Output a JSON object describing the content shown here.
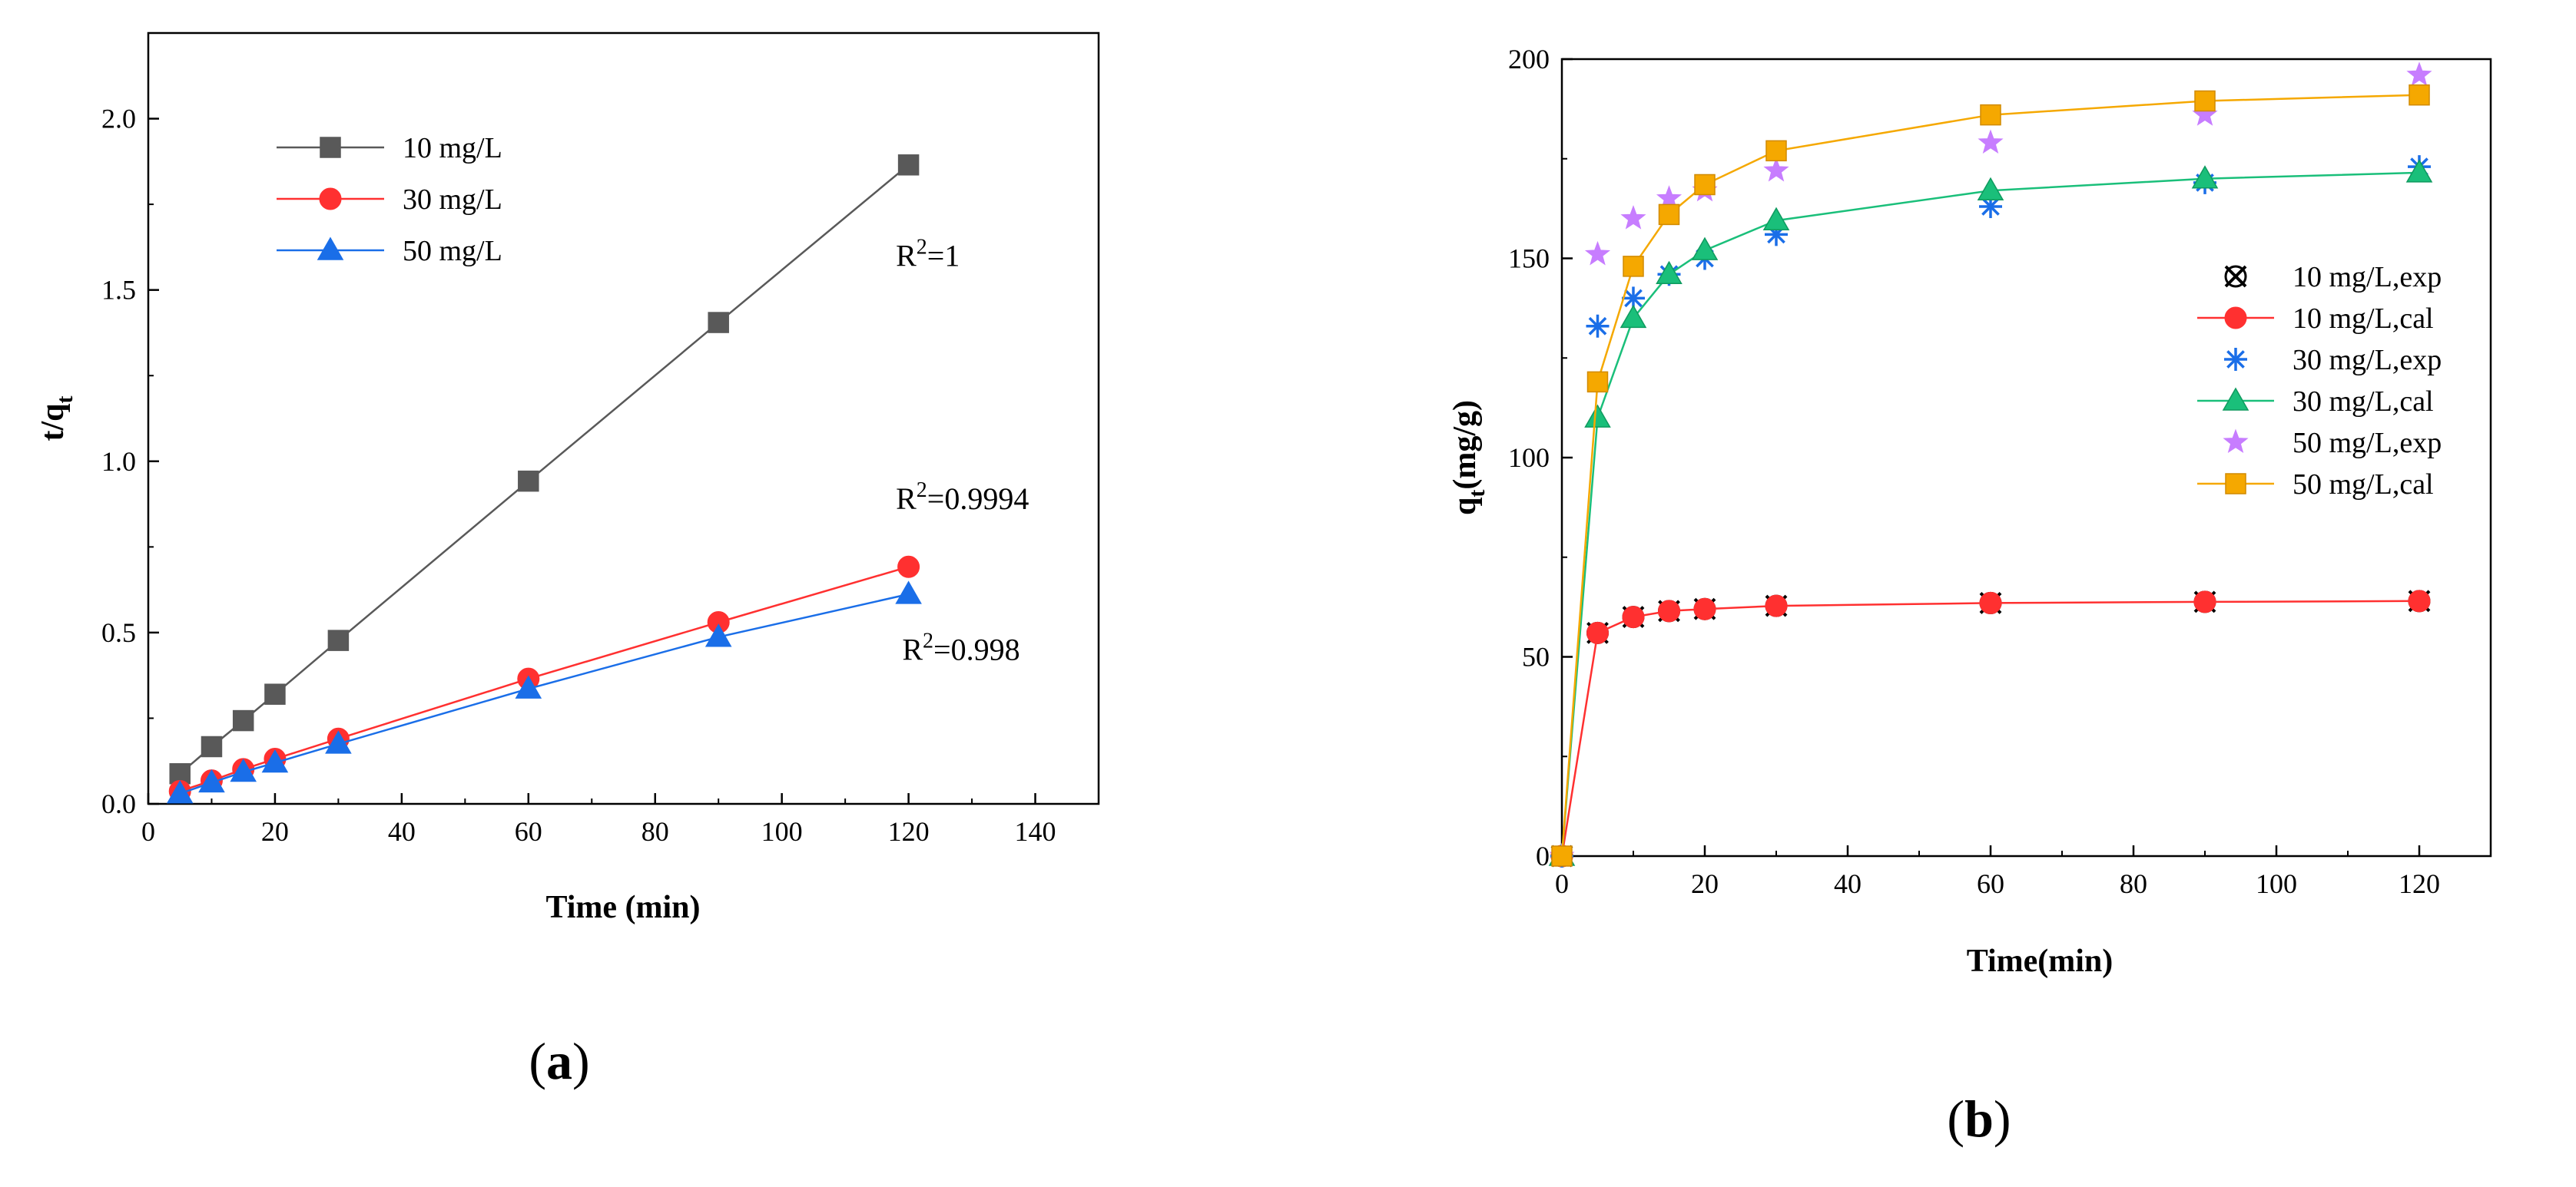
{
  "chart_data": [
    {
      "type": "line",
      "panel_label": "a",
      "xlabel": "Time (min)",
      "ylabel_main": "t/q",
      "ylabel_sub": "t",
      "xlim": [
        0,
        150
      ],
      "ylim": [
        0,
        2.25
      ],
      "xticks": [
        0,
        20,
        40,
        60,
        80,
        100,
        120,
        140
      ],
      "yticks": [
        0.0,
        0.5,
        1.0,
        1.5,
        2.0
      ],
      "ytick_labels": [
        "0.0",
        "0.5",
        "1.0",
        "1.5",
        "2.0"
      ],
      "legend_position": "top-left",
      "series": [
        {
          "name": "10 mg/L",
          "color": "#595959",
          "marker": "square",
          "x": [
            5,
            10,
            15,
            20,
            30,
            60,
            90,
            120
          ],
          "y": [
            0.088,
            0.167,
            0.243,
            0.32,
            0.477,
            0.942,
            1.405,
            1.865
          ]
        },
        {
          "name": "30 mg/L",
          "color": "#ff3030",
          "marker": "circle",
          "x": [
            5,
            10,
            15,
            20,
            30,
            60,
            90,
            120
          ],
          "y": [
            0.037,
            0.068,
            0.101,
            0.131,
            0.19,
            0.365,
            0.53,
            0.692
          ]
        },
        {
          "name": "50 mg/L",
          "color": "#1a6ee8",
          "marker": "triangle",
          "x": [
            5,
            10,
            15,
            20,
            30,
            60,
            90,
            120
          ],
          "y": [
            0.03,
            0.062,
            0.093,
            0.12,
            0.175,
            0.336,
            0.487,
            0.612
          ]
        }
      ],
      "annotations": [
        {
          "base": "R",
          "sup": "2",
          "value": "=1",
          "x": 118,
          "y": 1.57
        },
        {
          "base": "R",
          "sup": "2",
          "value": "=0.9994",
          "x": 118,
          "y": 0.86
        },
        {
          "base": "R",
          "sup": "2",
          "value": "=0.998",
          "x": 119,
          "y": 0.42
        }
      ]
    },
    {
      "type": "line",
      "panel_label": "b",
      "xlabel": "Time(min)",
      "ylabel_main": "q",
      "ylabel_sub": "t",
      "ylabel_rest": "(mg/g)",
      "xlim": [
        0,
        130
      ],
      "ylim": [
        0,
        200
      ],
      "xticks": [
        0,
        20,
        40,
        60,
        80,
        100,
        120
      ],
      "yticks": [
        0,
        50,
        100,
        150,
        200
      ],
      "ytick_labels": [
        "0",
        "50",
        "100",
        "150",
        "200"
      ],
      "legend_position": "center-right",
      "series": [
        {
          "name": "10 mg/L,exp",
          "color": "#000000",
          "marker": "xcircle",
          "line": false,
          "x": [
            0,
            5,
            10,
            15,
            20,
            30,
            60,
            90,
            120
          ],
          "y": [
            0,
            56,
            60,
            61.5,
            62,
            62.8,
            63.5,
            63.8,
            64
          ]
        },
        {
          "name": "10 mg/L,cal",
          "color": "#ff3030",
          "marker": "circle",
          "line": true,
          "x": [
            0,
            5,
            10,
            15,
            20,
            30,
            60,
            90,
            120
          ],
          "y": [
            0,
            56,
            60,
            61.5,
            62,
            62.8,
            63.5,
            63.8,
            64
          ]
        },
        {
          "name": "30 mg/L,exp",
          "color": "#1a6ee8",
          "marker": "asterisk",
          "line": false,
          "x": [
            0,
            5,
            10,
            15,
            20,
            30,
            60,
            90,
            120
          ],
          "y": [
            0,
            133,
            140,
            146,
            150,
            156,
            163,
            169,
            173
          ]
        },
        {
          "name": "30 mg/L,cal",
          "color": "#1abf7a",
          "marker": "triangle",
          "line": true,
          "x": [
            0,
            5,
            10,
            15,
            20,
            30,
            60,
            90,
            120
          ],
          "y": [
            0,
            110,
            135,
            146,
            152,
            159.5,
            167,
            170,
            171.5
          ]
        },
        {
          "name": "50 mg/L,exp",
          "color": "#c77dff",
          "marker": "star",
          "line": false,
          "x": [
            0,
            5,
            10,
            15,
            20,
            30,
            60,
            90,
            120
          ],
          "y": [
            0,
            151,
            160,
            165,
            167,
            172,
            179,
            186,
            196
          ]
        },
        {
          "name": "50 mg/L,cal",
          "color": "#f5a800",
          "marker": "square",
          "line": true,
          "x": [
            0,
            5,
            10,
            15,
            20,
            30,
            60,
            90,
            120
          ],
          "y": [
            0,
            119,
            148,
            161,
            168.5,
            177,
            186,
            189.5,
            191
          ]
        }
      ]
    }
  ]
}
